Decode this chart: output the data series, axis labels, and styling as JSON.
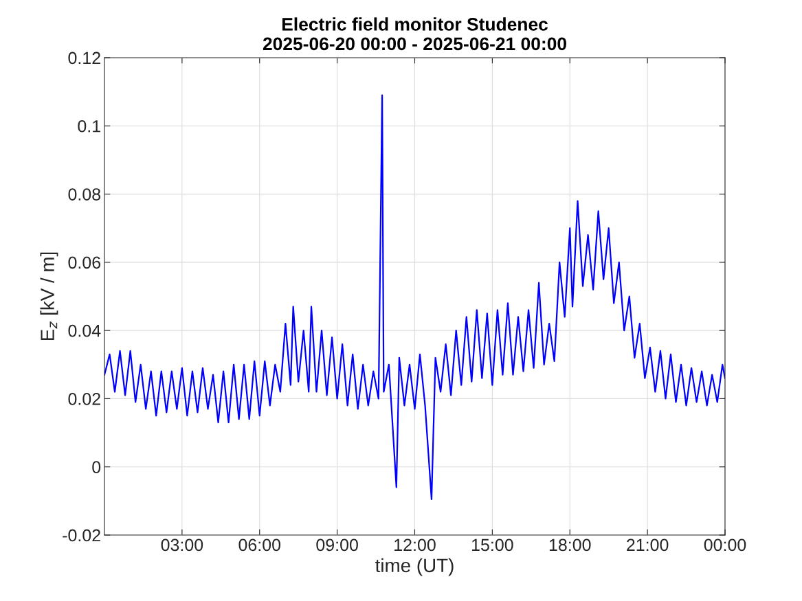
{
  "chart_data": {
    "type": "line",
    "title": "Electric field monitor Studenec\n2025-06-20 00:00 - 2025-06-21 00:00",
    "xlabel": "time (UT)",
    "ylabel": "E$_{z}$ [kV / m]",
    "xlim": [
      0,
      24
    ],
    "xticks": [
      {
        "value": 3,
        "label": "03:00"
      },
      {
        "value": 6,
        "label": "06:00"
      },
      {
        "value": 9,
        "label": "09:00"
      },
      {
        "value": 12,
        "label": "12:00"
      },
      {
        "value": 15,
        "label": "15:00"
      },
      {
        "value": 18,
        "label": "18:00"
      },
      {
        "value": 21,
        "label": "21:00"
      },
      {
        "value": 24,
        "label": "00:00"
      }
    ],
    "ylim": [
      -0.02,
      0.12
    ],
    "yticks": [
      -0.02,
      0,
      0.02,
      0.04,
      0.06,
      0.08,
      0.1,
      0.12
    ],
    "grid": true,
    "legend": false,
    "marker": "none",
    "line_style": "solid",
    "series": [
      {
        "color": "#0000ff",
        "x": [
          0,
          0.2,
          0.4,
          0.6,
          0.8,
          1.0,
          1.2,
          1.4,
          1.6,
          1.8,
          2.0,
          2.2,
          2.4,
          2.6,
          2.8,
          3.0,
          3.2,
          3.4,
          3.6,
          3.8,
          4.0,
          4.2,
          4.4,
          4.6,
          4.8,
          5.0,
          5.2,
          5.4,
          5.6,
          5.8,
          6.0,
          6.2,
          6.4,
          6.6,
          6.8,
          7.0,
          7.2,
          7.3,
          7.5,
          7.7,
          7.9,
          8.0,
          8.2,
          8.4,
          8.6,
          8.8,
          9.0,
          9.2,
          9.4,
          9.6,
          9.8,
          10.0,
          10.2,
          10.4,
          10.6,
          10.74,
          10.8,
          11.0,
          11.29,
          11.4,
          11.6,
          11.8,
          12.0,
          12.2,
          12.4,
          12.65,
          12.8,
          13.0,
          13.2,
          13.4,
          13.6,
          13.8,
          14.0,
          14.2,
          14.4,
          14.6,
          14.8,
          15.0,
          15.2,
          15.4,
          15.6,
          15.8,
          16.0,
          16.2,
          16.4,
          16.6,
          16.8,
          17.0,
          17.2,
          17.4,
          17.6,
          17.8,
          18.0,
          18.1,
          18.3,
          18.5,
          18.7,
          18.9,
          19.1,
          19.3,
          19.5,
          19.7,
          19.9,
          20.1,
          20.3,
          20.5,
          20.7,
          20.9,
          21.1,
          21.3,
          21.5,
          21.7,
          21.9,
          22.1,
          22.3,
          22.5,
          22.7,
          22.9,
          23.1,
          23.3,
          23.5,
          23.7,
          23.9,
          24.0
        ],
        "values": [
          0.027,
          0.033,
          0.022,
          0.034,
          0.021,
          0.034,
          0.019,
          0.03,
          0.017,
          0.028,
          0.015,
          0.028,
          0.016,
          0.028,
          0.017,
          0.029,
          0.015,
          0.028,
          0.016,
          0.029,
          0.017,
          0.027,
          0.013,
          0.028,
          0.013,
          0.03,
          0.014,
          0.03,
          0.014,
          0.031,
          0.015,
          0.031,
          0.018,
          0.03,
          0.022,
          0.042,
          0.024,
          0.047,
          0.025,
          0.04,
          0.022,
          0.047,
          0.022,
          0.04,
          0.021,
          0.038,
          0.02,
          0.036,
          0.018,
          0.033,
          0.017,
          0.03,
          0.018,
          0.028,
          0.02,
          0.109,
          0.022,
          0.03,
          -0.006,
          0.032,
          0.018,
          0.03,
          0.017,
          0.033,
          0.018,
          -0.0095,
          0.032,
          0.022,
          0.036,
          0.021,
          0.04,
          0.024,
          0.044,
          0.025,
          0.046,
          0.026,
          0.045,
          0.024,
          0.046,
          0.027,
          0.048,
          0.027,
          0.044,
          0.028,
          0.046,
          0.029,
          0.054,
          0.03,
          0.042,
          0.031,
          0.06,
          0.044,
          0.07,
          0.047,
          0.078,
          0.053,
          0.068,
          0.052,
          0.075,
          0.055,
          0.07,
          0.048,
          0.06,
          0.04,
          0.05,
          0.032,
          0.042,
          0.026,
          0.035,
          0.022,
          0.034,
          0.02,
          0.033,
          0.019,
          0.03,
          0.018,
          0.029,
          0.019,
          0.028,
          0.018,
          0.027,
          0.019,
          0.03,
          0.026
        ]
      }
    ]
  }
}
